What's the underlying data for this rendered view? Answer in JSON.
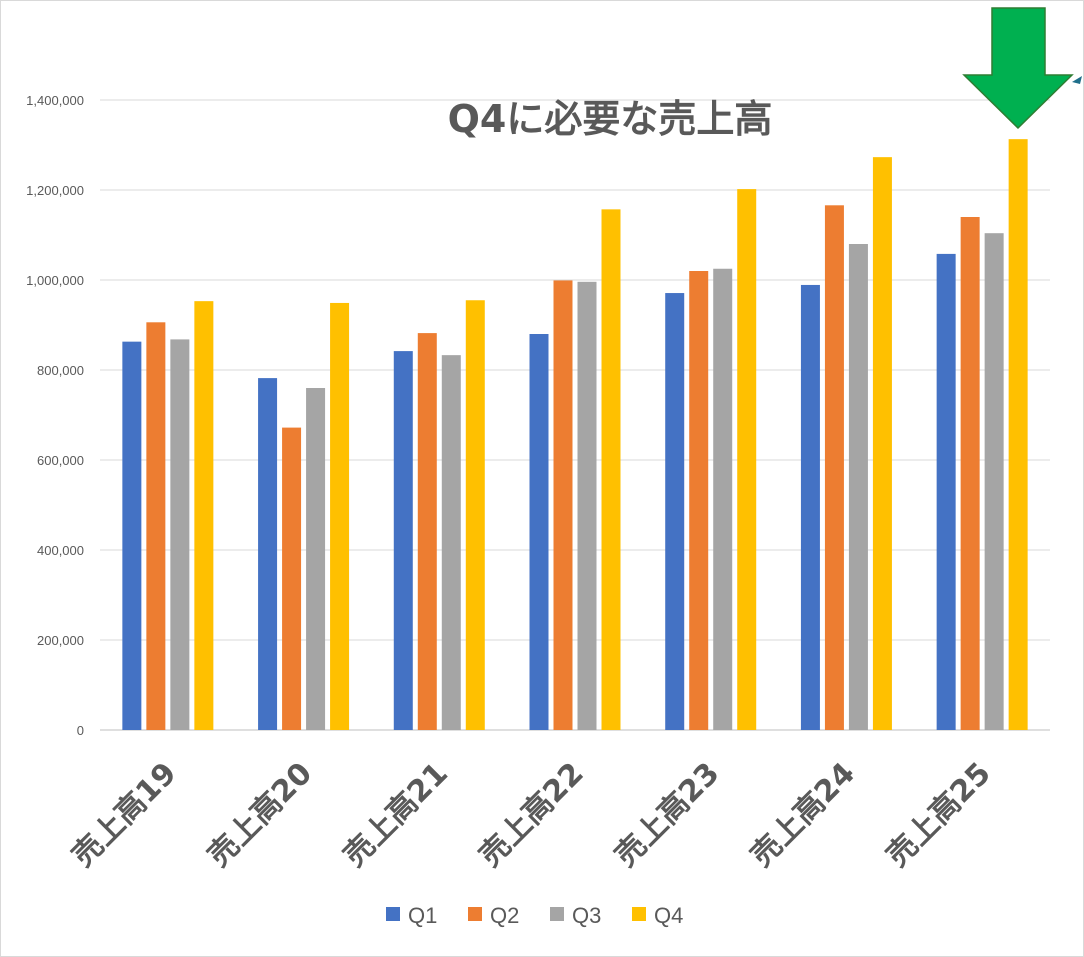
{
  "chart_data": {
    "type": "bar",
    "title": "Q4に必要な売上高",
    "categories": [
      "売上高19",
      "売上高20",
      "売上高21",
      "売上高22",
      "売上高23",
      "売上高24",
      "売上高25"
    ],
    "series": [
      {
        "name": "Q1",
        "color": "#4472c4",
        "values": [
          863000,
          782000,
          842000,
          880000,
          971000,
          989000,
          1058000
        ]
      },
      {
        "name": "Q2",
        "color": "#ed7d31",
        "values": [
          906000,
          672000,
          882000,
          999000,
          1020000,
          1166000,
          1140000
        ]
      },
      {
        "name": "Q3",
        "color": "#a5a5a5",
        "values": [
          868000,
          760000,
          833000,
          996000,
          1025000,
          1080000,
          1104000
        ]
      },
      {
        "name": "Q4",
        "color": "#ffc000",
        "values": [
          953000,
          949000,
          955000,
          1157000,
          1202000,
          1273000,
          1313000
        ]
      }
    ],
    "ylim": [
      0,
      1400000
    ],
    "yticks": [
      "0",
      "200,000",
      "400,000",
      "600,000",
      "800,000",
      "1,000,000",
      "1,200,000",
      "1,400,000"
    ],
    "gridlines": true,
    "legend_position": "bottom",
    "annotation_arrow": {
      "color": "#00b050",
      "target_category": "売上高25",
      "target_series": "Q4"
    }
  }
}
